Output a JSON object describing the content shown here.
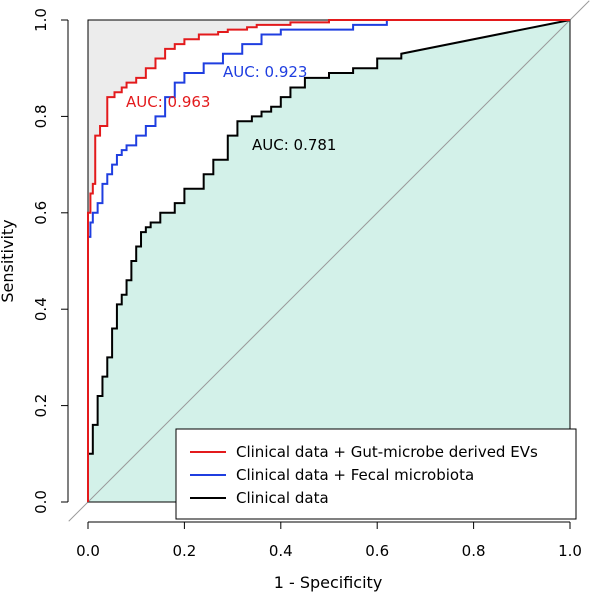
{
  "chart_data": {
    "type": "line",
    "xlabel": "1 - Specificity",
    "ylabel": "Sensitivity",
    "xlim": [
      0,
      1
    ],
    "ylim": [
      0,
      1
    ],
    "xticks": [
      "0.0",
      "0.2",
      "0.4",
      "0.6",
      "0.8",
      "1.0"
    ],
    "yticks": [
      "0.0",
      "0.2",
      "0.4",
      "0.6",
      "0.8",
      "1.0"
    ],
    "diagonal_reference": true,
    "grid": false,
    "legend_position": "bottom-right",
    "series": [
      {
        "name": "Clinical data + Gut-microbe derived EVs",
        "color": "#e31a1c",
        "auc_label": "AUC: 0.963",
        "fill": "#ececec",
        "x": [
          0,
          0,
          0.005,
          0.005,
          0.01,
          0.01,
          0.015,
          0.015,
          0.025,
          0.025,
          0.04,
          0.04,
          0.055,
          0.055,
          0.07,
          0.07,
          0.08,
          0.08,
          0.1,
          0.1,
          0.12,
          0.12,
          0.14,
          0.14,
          0.16,
          0.16,
          0.18,
          0.18,
          0.2,
          0.2,
          0.23,
          0.23,
          0.27,
          0.27,
          0.29,
          0.29,
          0.33,
          0.33,
          0.35,
          0.35,
          0.42,
          0.42,
          0.5,
          0.5,
          1
        ],
        "y": [
          0,
          0.6,
          0.6,
          0.64,
          0.64,
          0.66,
          0.66,
          0.76,
          0.76,
          0.78,
          0.78,
          0.84,
          0.84,
          0.85,
          0.85,
          0.86,
          0.86,
          0.87,
          0.87,
          0.88,
          0.88,
          0.9,
          0.9,
          0.92,
          0.92,
          0.94,
          0.94,
          0.95,
          0.95,
          0.96,
          0.96,
          0.97,
          0.97,
          0.975,
          0.975,
          0.98,
          0.98,
          0.985,
          0.985,
          0.99,
          0.99,
          0.995,
          0.995,
          1,
          1
        ]
      },
      {
        "name": "Clinical data + Fecal microbiota",
        "color": "#1f3ee0",
        "auc_label": "AUC: 0.923",
        "fill": null,
        "x": [
          0,
          0,
          0.005,
          0.005,
          0.01,
          0.01,
          0.02,
          0.02,
          0.03,
          0.03,
          0.04,
          0.04,
          0.05,
          0.05,
          0.06,
          0.06,
          0.07,
          0.07,
          0.08,
          0.08,
          0.1,
          0.1,
          0.12,
          0.12,
          0.14,
          0.14,
          0.16,
          0.16,
          0.18,
          0.18,
          0.2,
          0.2,
          0.24,
          0.24,
          0.28,
          0.28,
          0.32,
          0.32,
          0.36,
          0.36,
          0.4,
          0.4,
          0.55,
          0.55,
          0.62,
          0.62,
          1
        ],
        "y": [
          0,
          0.55,
          0.55,
          0.58,
          0.58,
          0.6,
          0.6,
          0.62,
          0.62,
          0.66,
          0.66,
          0.68,
          0.68,
          0.7,
          0.7,
          0.72,
          0.72,
          0.73,
          0.73,
          0.74,
          0.74,
          0.76,
          0.76,
          0.78,
          0.78,
          0.8,
          0.8,
          0.84,
          0.84,
          0.87,
          0.87,
          0.89,
          0.89,
          0.91,
          0.91,
          0.93,
          0.93,
          0.95,
          0.95,
          0.97,
          0.97,
          0.98,
          0.98,
          0.99,
          0.99,
          1,
          1
        ]
      },
      {
        "name": "Clinical data",
        "color": "#000000",
        "auc_label": "AUC: 0.781",
        "fill": "#d3f1e9",
        "x": [
          0,
          0,
          0.01,
          0.01,
          0.02,
          0.02,
          0.03,
          0.03,
          0.04,
          0.04,
          0.05,
          0.05,
          0.06,
          0.06,
          0.07,
          0.07,
          0.08,
          0.08,
          0.09,
          0.09,
          0.1,
          0.1,
          0.11,
          0.11,
          0.12,
          0.12,
          0.13,
          0.13,
          0.15,
          0.15,
          0.18,
          0.18,
          0.2,
          0.2,
          0.24,
          0.24,
          0.26,
          0.26,
          0.29,
          0.29,
          0.31,
          0.31,
          0.34,
          0.34,
          0.36,
          0.36,
          0.38,
          0.38,
          0.4,
          0.4,
          0.42,
          0.42,
          0.45,
          0.45,
          0.5,
          0.5,
          0.55,
          0.55,
          0.6,
          0.6,
          0.65,
          0.65,
          1
        ],
        "y": [
          0,
          0.1,
          0.1,
          0.16,
          0.16,
          0.22,
          0.22,
          0.26,
          0.26,
          0.3,
          0.3,
          0.36,
          0.36,
          0.41,
          0.41,
          0.43,
          0.43,
          0.46,
          0.46,
          0.5,
          0.5,
          0.53,
          0.53,
          0.56,
          0.56,
          0.57,
          0.57,
          0.58,
          0.58,
          0.6,
          0.6,
          0.62,
          0.62,
          0.65,
          0.65,
          0.68,
          0.68,
          0.71,
          0.71,
          0.76,
          0.76,
          0.79,
          0.79,
          0.8,
          0.8,
          0.81,
          0.81,
          0.82,
          0.82,
          0.84,
          0.84,
          0.86,
          0.86,
          0.88,
          0.88,
          0.89,
          0.89,
          0.9,
          0.9,
          0.92,
          0.92,
          0.93,
          1
        ]
      }
    ]
  }
}
